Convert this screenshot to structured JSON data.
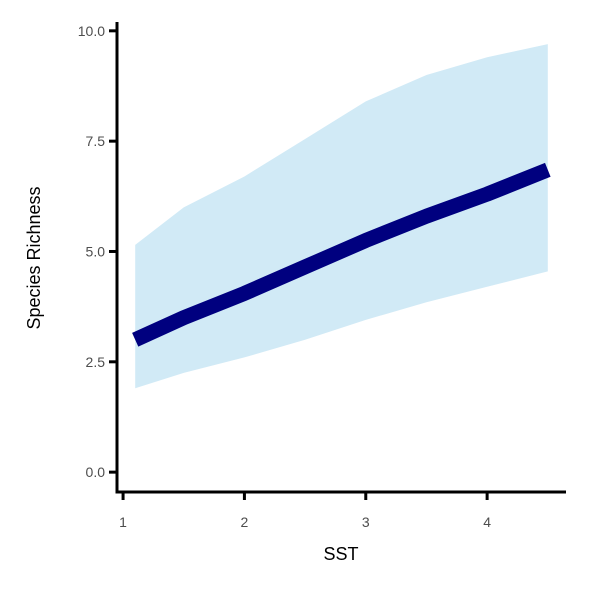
{
  "chart_data": {
    "type": "line",
    "title": "",
    "xlabel": "SST",
    "ylabel": "Species Richness",
    "xlim": [
      0.95,
      4.65
    ],
    "ylim": [
      -0.45,
      10.2
    ],
    "x_ticks": [
      1,
      2,
      3,
      4
    ],
    "x_tick_labels": [
      "1",
      "2",
      "3",
      "4"
    ],
    "y_ticks": [
      0.0,
      2.5,
      5.0,
      7.5,
      10.0
    ],
    "y_tick_labels": [
      "0.0",
      "2.5",
      "5.0",
      "7.5",
      "10.0"
    ],
    "grid": false,
    "legend": "none",
    "series": [
      {
        "x": [
          1.1,
          1.5,
          2.0,
          2.5,
          3.0,
          3.5,
          4.0,
          4.5
        ],
        "y": [
          3.0,
          3.5,
          4.05,
          4.65,
          5.25,
          5.8,
          6.3,
          6.85
        ],
        "lower": [
          1.9,
          2.25,
          2.6,
          3.0,
          3.45,
          3.85,
          4.2,
          4.55
        ],
        "upper": [
          5.15,
          6.0,
          6.7,
          7.55,
          8.4,
          9.0,
          9.4,
          9.7
        ]
      }
    ],
    "colors": {
      "line": "#00007f",
      "ribbon": "#d1eaf6",
      "axis": "#000000",
      "tick_label": "#4d4d4d"
    }
  }
}
